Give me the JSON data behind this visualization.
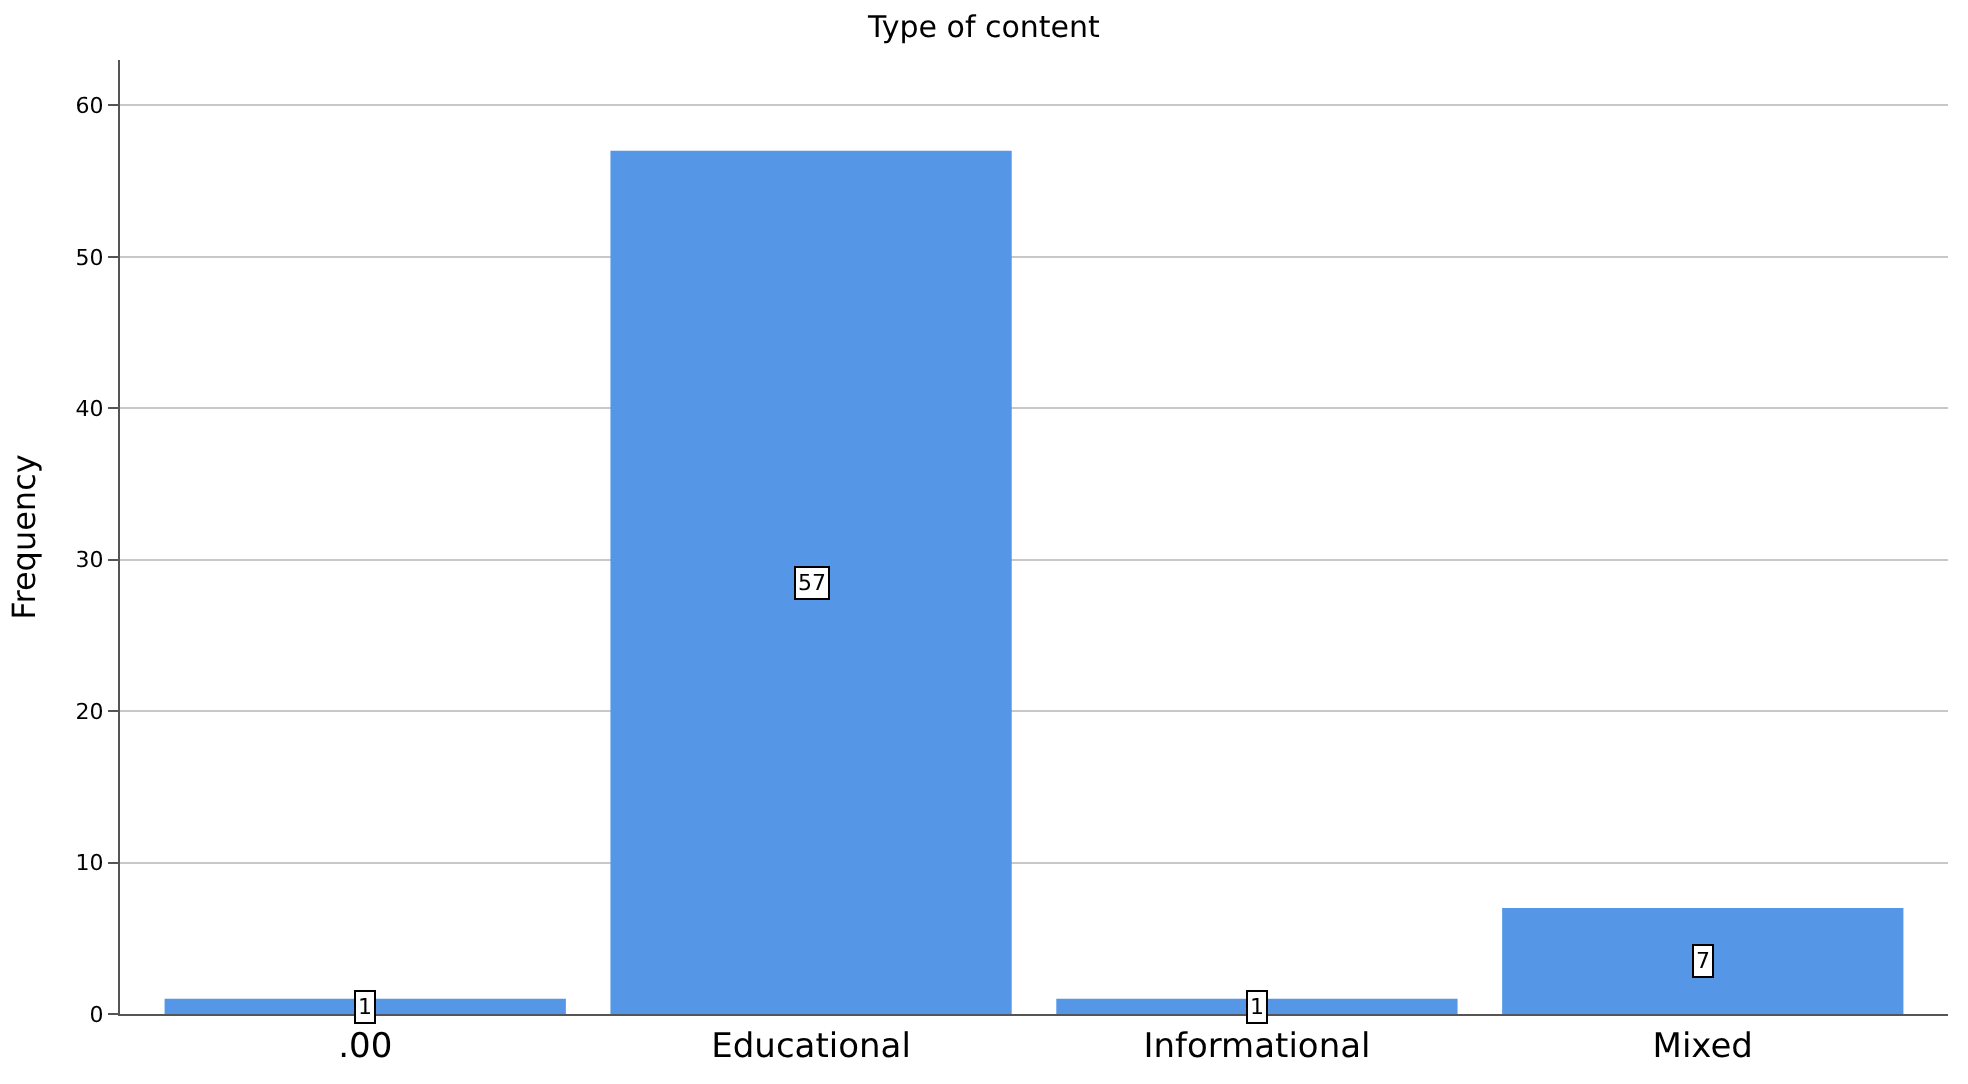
{
  "chart_data": {
    "type": "bar",
    "title": "Type of content",
    "ylabel": "Frequency",
    "categories": [
      ".00",
      "Educational",
      "Informational",
      "Mixed"
    ],
    "values": [
      1,
      57,
      1,
      7
    ],
    "color": "#5596e6",
    "ylim": [
      0,
      63
    ],
    "yticks": [
      0,
      10,
      20,
      30,
      40,
      50,
      60
    ],
    "grid": "y",
    "data_labels": true
  }
}
